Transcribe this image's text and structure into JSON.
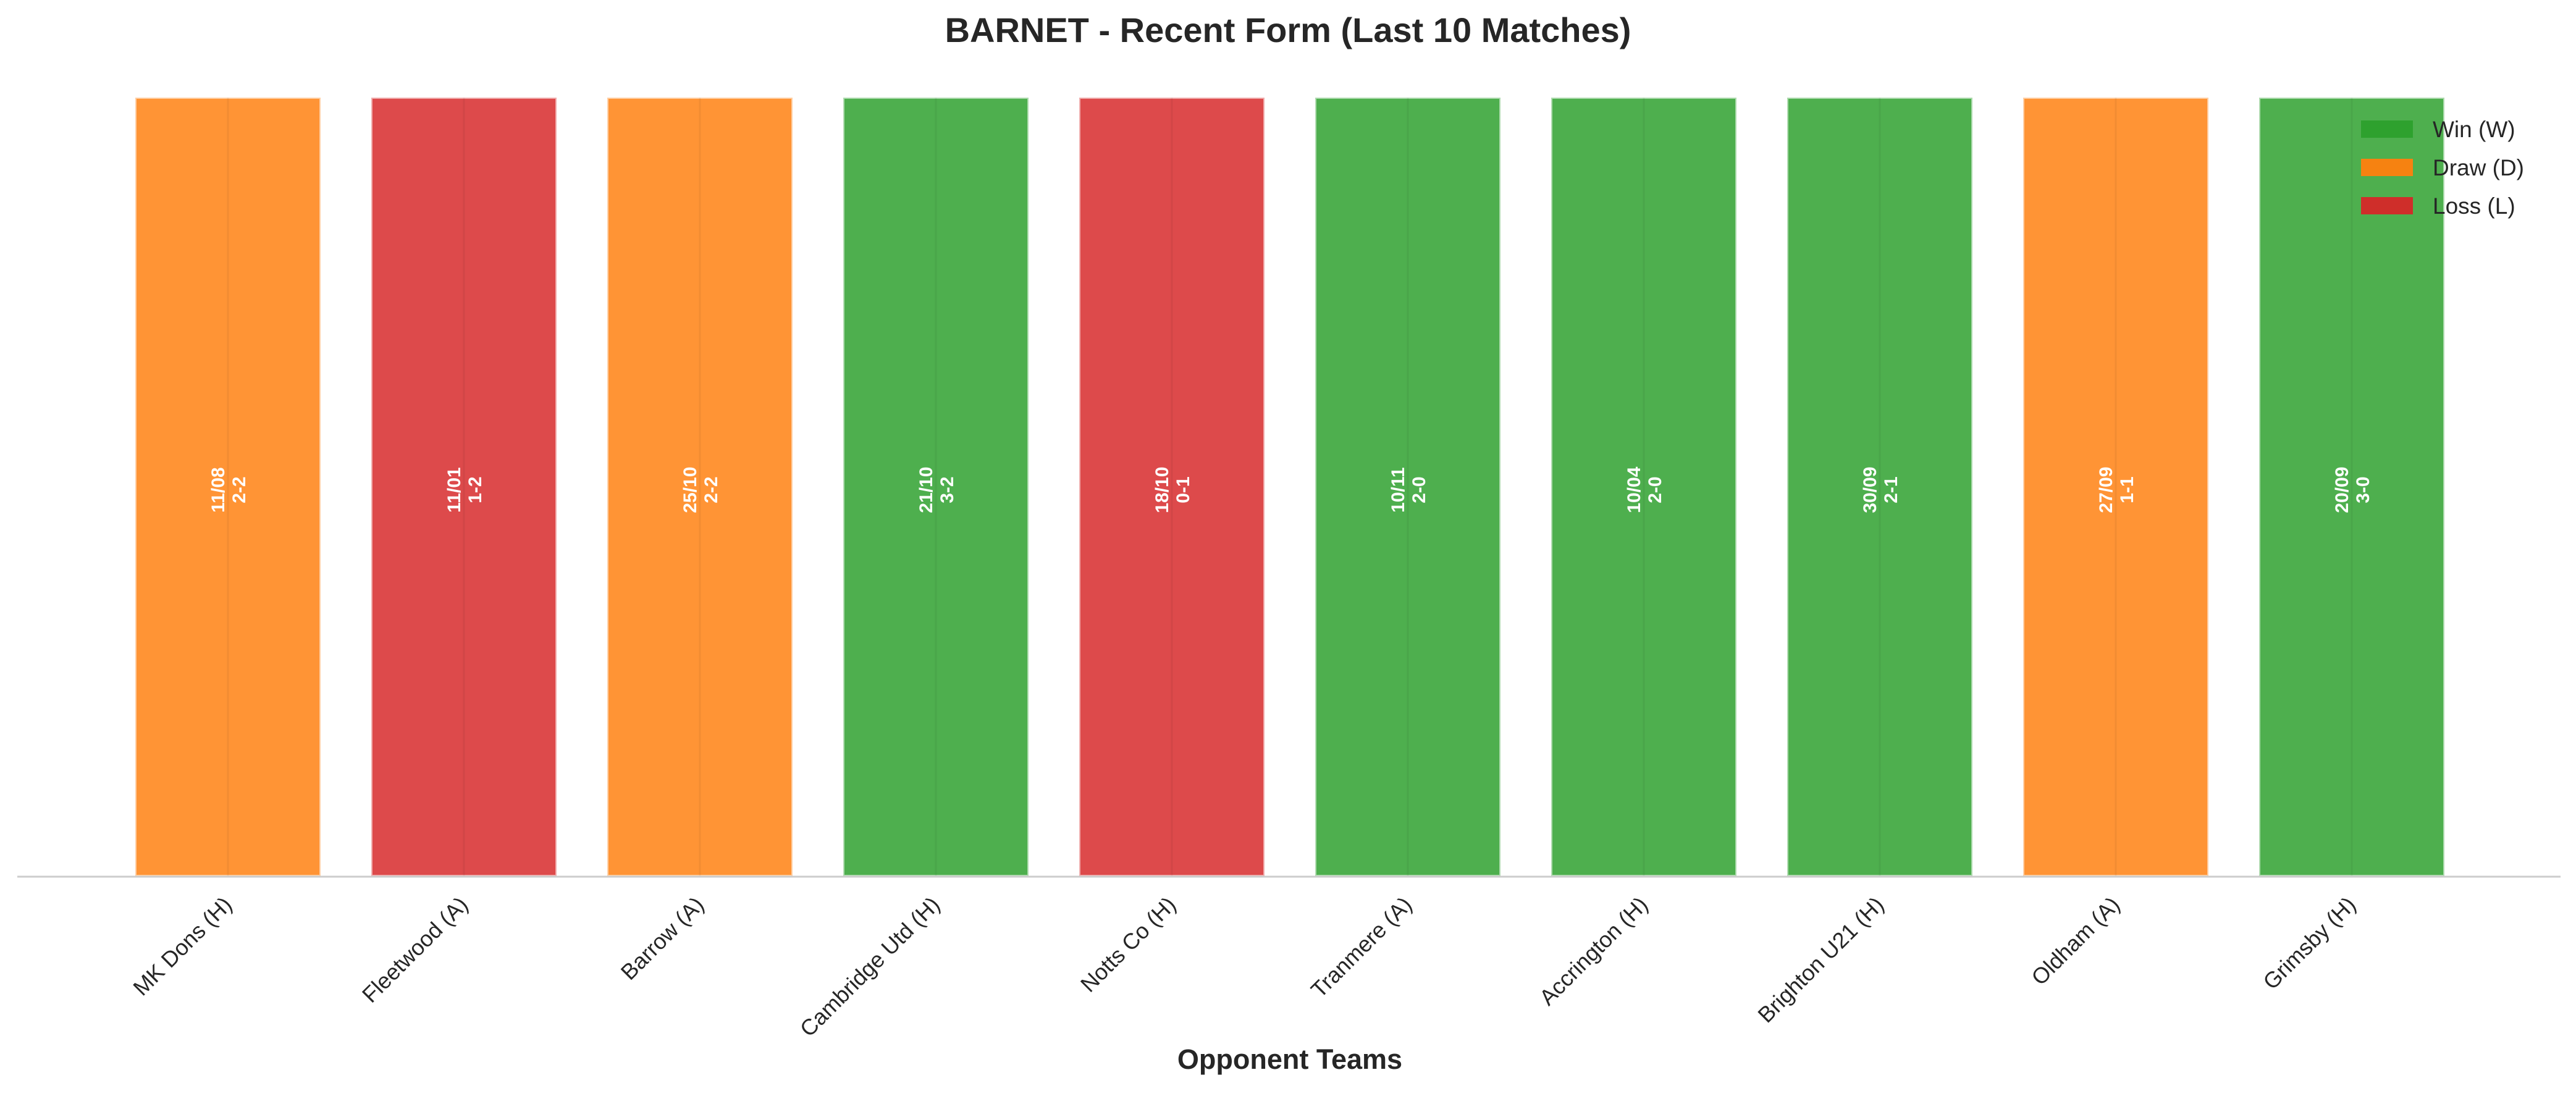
{
  "chart_data": {
    "type": "bar",
    "title": "BARNET - Recent Form (Last 10 Matches)",
    "xlabel": "Opponent Teams",
    "ylabel": "",
    "categories": [
      "MK Dons (H)",
      "Fleetwood (A)",
      "Barrow (A)",
      "Cambridge Utd (H)",
      "Notts Co (H)",
      "Tranmere (A)",
      "Accrington (H)",
      "Brighton U21 (H)",
      "Oldham (A)",
      "Grimsby (H)"
    ],
    "values": [
      1,
      1,
      1,
      1,
      1,
      1,
      1,
      1,
      1,
      1
    ],
    "results": [
      "D",
      "L",
      "D",
      "W",
      "L",
      "W",
      "W",
      "W",
      "D",
      "W"
    ],
    "dates": [
      "11/08",
      "11/01",
      "25/10",
      "21/10",
      "18/10",
      "10/11",
      "10/04",
      "30/09",
      "27/09",
      "20/09"
    ],
    "scores": [
      "2-2",
      "1-2",
      "2-2",
      "3-2",
      "0-1",
      "2-0",
      "2-0",
      "2-1",
      "1-1",
      "3-0"
    ],
    "ylim": [
      0,
      1
    ],
    "grid": false,
    "legend_position": "top-right",
    "legend": [
      {
        "key": "W",
        "label": "Win (W)",
        "color": "#2ca02c"
      },
      {
        "key": "D",
        "label": "Draw (D)",
        "color": "#ff7f0e"
      },
      {
        "key": "L",
        "label": "Loss (L)",
        "color": "#d62728"
      }
    ]
  }
}
